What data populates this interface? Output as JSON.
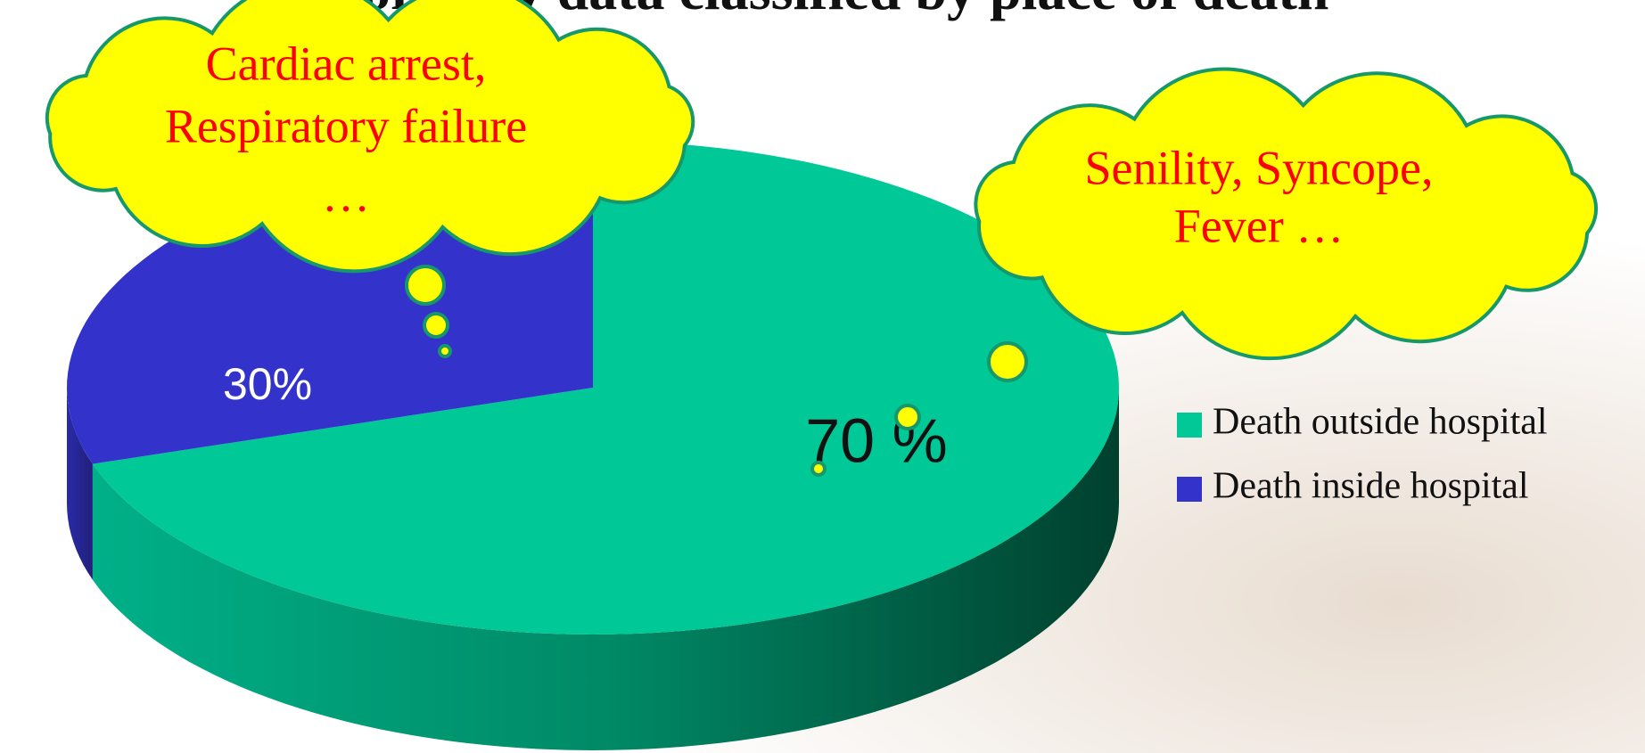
{
  "chart_data": {
    "type": "pie",
    "title": "Mortality data classified by place of death",
    "categories": [
      "Death outside hospital",
      "Death inside hospital"
    ],
    "values": [
      70,
      30
    ],
    "value_labels": [
      "70 %",
      "30%"
    ],
    "colors": [
      "#00c896",
      "#3333cc"
    ],
    "annotations": [
      {
        "lines": [
          "Cardiac arrest,",
          "Respiratory failure",
          "…"
        ]
      },
      {
        "lines": [
          "Senility, Syncope,",
          "Fever …"
        ]
      }
    ]
  }
}
